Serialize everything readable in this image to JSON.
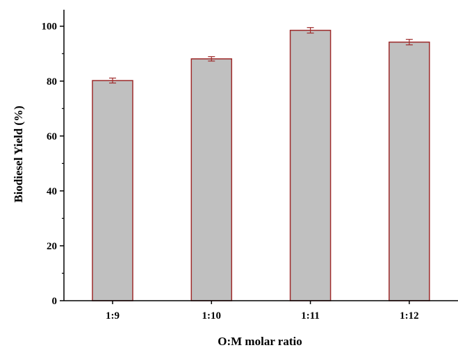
{
  "chart_data": {
    "type": "bar",
    "title": "",
    "xlabel": "O:M molar ratio",
    "ylabel": "Biodiesel Yield (%)",
    "categories": [
      "1:9",
      "1:10",
      "1:11",
      "1:12"
    ],
    "values": [
      80.2,
      88.1,
      98.5,
      94.2
    ],
    "errors": [
      0.9,
      0.8,
      1.0,
      1.0
    ],
    "ylim": [
      0,
      106
    ],
    "yticks": [
      0,
      20,
      40,
      60,
      80,
      100
    ],
    "ytick_labels": [
      "0",
      "20",
      "40",
      "60",
      "80",
      "100"
    ],
    "grid": false,
    "legend": "none",
    "colors": {
      "bar_fill": "#c0c0c0",
      "bar_edge": "#9e2a2a",
      "error_bar": "#9e2a2a",
      "axis": "#000000"
    }
  }
}
